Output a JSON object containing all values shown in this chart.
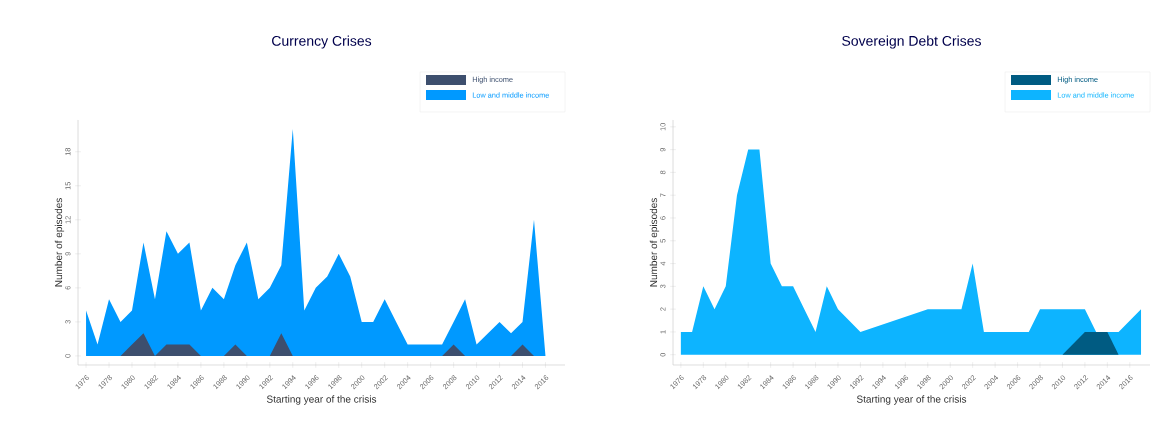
{
  "chart_data": [
    {
      "type": "area",
      "title": "Currency Crises",
      "xlabel": "Starting year of the crisis",
      "ylabel": "Number of episodes",
      "legend": "top right",
      "xlim": [
        1975.3,
        2017.7
      ],
      "ylim": [
        -0.8,
        20.8
      ],
      "xticks": [
        1976,
        1978,
        1980,
        1982,
        1984,
        1986,
        1988,
        1990,
        1992,
        1994,
        1996,
        1998,
        2000,
        2002,
        2004,
        2006,
        2008,
        2010,
        2012,
        2014,
        2016
      ],
      "yticks": [
        0,
        3,
        6,
        9,
        12,
        15,
        18
      ],
      "series": [
        {
          "name": "High income",
          "color": "#3d4f6e",
          "x": [
            1976,
            1977,
            1978,
            1979,
            1980,
            1981,
            1982,
            1983,
            1984,
            1985,
            1986,
            1987,
            1988,
            1989,
            1990,
            1991,
            1992,
            1993,
            1994,
            1995,
            1996,
            1997,
            1998,
            1999,
            2000,
            2001,
            2002,
            2003,
            2004,
            2005,
            2006,
            2007,
            2008,
            2009,
            2010,
            2011,
            2012,
            2013,
            2014,
            2015,
            2016
          ],
          "values": [
            0,
            0,
            0,
            0,
            1,
            2,
            0,
            1,
            1,
            1,
            0,
            0,
            0,
            1,
            0,
            0,
            0,
            2,
            0,
            0,
            0,
            0,
            0,
            0,
            0,
            0,
            0,
            0,
            0,
            0,
            0,
            0,
            1,
            0,
            0,
            0,
            0,
            0,
            1,
            0,
            0
          ]
        },
        {
          "name": "Low and middle income",
          "color": "#0099ff",
          "x": [
            1976,
            1977,
            1978,
            1979,
            1980,
            1981,
            1982,
            1983,
            1984,
            1985,
            1986,
            1987,
            1988,
            1989,
            1990,
            1991,
            1992,
            1993,
            1994,
            1995,
            1996,
            1997,
            1998,
            1999,
            2000,
            2001,
            2002,
            2003,
            2004,
            2005,
            2006,
            2007,
            2008,
            2009,
            2010,
            2011,
            2012,
            2013,
            2014,
            2015,
            2016
          ],
          "values": [
            4,
            1,
            5,
            3,
            4,
            10,
            5,
            11,
            9,
            10,
            4,
            6,
            5,
            8,
            10,
            5,
            6,
            8,
            20,
            4,
            6,
            7,
            9,
            7,
            3,
            3,
            5,
            3,
            1,
            1,
            1,
            1,
            3,
            5,
            1,
            2,
            3,
            2,
            3,
            12,
            0
          ]
        }
      ]
    },
    {
      "type": "area",
      "title": "Sovereign Debt Crises",
      "xlabel": "Starting year of the crisis",
      "ylabel": "Number of episodes",
      "legend": "top right",
      "xlim": [
        1975.3,
        2017.8
      ],
      "ylim": [
        -0.45,
        10.3
      ],
      "xticks": [
        1976,
        1978,
        1980,
        1982,
        1984,
        1986,
        1988,
        1990,
        1992,
        1994,
        1996,
        1998,
        2000,
        2002,
        2004,
        2006,
        2008,
        2010,
        2012,
        2014,
        2016
      ],
      "yticks": [
        0,
        1,
        2,
        3,
        4,
        5,
        6,
        7,
        8,
        9,
        10
      ],
      "series": [
        {
          "name": "High income",
          "color": "#005b82",
          "x": [
            2010,
            2012,
            2013,
            2014,
            2015
          ],
          "values": [
            0,
            1,
            1,
            1,
            0
          ]
        },
        {
          "name": "Low and middle income",
          "color": "#0db4ff",
          "x": [
            1976,
            1977,
            1978,
            1979,
            1980,
            1981,
            1982,
            1983,
            1984,
            1985,
            1986,
            1987,
            1988,
            1989,
            1990,
            1992,
            1998,
            1999,
            2000,
            2001,
            2002,
            2003,
            2004,
            2005,
            2006,
            2007,
            2008,
            2009,
            2010,
            2011,
            2012,
            2013,
            2014,
            2015,
            2017
          ],
          "values": [
            1,
            1,
            3,
            2,
            3,
            7,
            9,
            9,
            4,
            3,
            3,
            2,
            1,
            3,
            2,
            1,
            2,
            2,
            2,
            2,
            4,
            1,
            1,
            1,
            1,
            1,
            2,
            2,
            2,
            2,
            2,
            1,
            1,
            1,
            2
          ]
        }
      ]
    }
  ]
}
